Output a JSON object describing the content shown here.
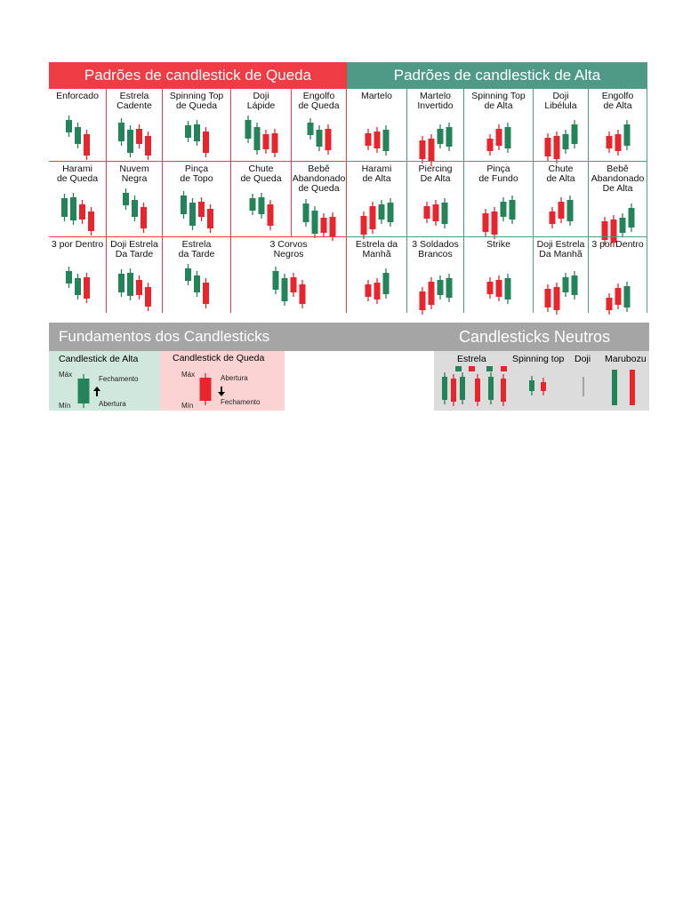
{
  "bearish": {
    "title": "Padrões de candlestick de Queda",
    "patterns": [
      "Enforcado",
      "Estrela\nCadente",
      "Spinning Top\nde Queda",
      "Doji\nLápide",
      "Engolfo\nde Queda",
      "Harami\nde Queda",
      "Nuvem\nNegra",
      "Pinça\nde Topo",
      "Chute\nde Queda",
      "Bebê\nAbandonado\nde Queda",
      "3 por Dentro",
      "Doji Estrela\nDa Tarde",
      "Estrela\nda Tarde",
      "3 Corvos\nNegros"
    ]
  },
  "bullish": {
    "title": "Padrões de candlestick de Alta",
    "patterns": [
      "Martelo",
      "Martelo\nInvertido",
      "Spinning Top\nde Alta",
      "Doji\nLibélula",
      "Engolfo\nde Alta",
      "Harami\nde Alta",
      "Piercing\nDe Alta",
      "Pinça\nde Fundo",
      "Chute\nde Alta",
      "Bebê\nAbandonado\nDe Alta",
      "Estrela da\nManhã",
      "3 Soldados\nBrancos",
      "Strike",
      "Doji Estrela\nDa Manhã",
      "3 por Dentro"
    ]
  },
  "basics": {
    "title": "Fundamentos dos Candlesticks",
    "bull": {
      "title": "Candlestick de Alta",
      "max": "Máx",
      "min": "Mín",
      "close": "Fechamento",
      "open": "Abertura"
    },
    "bear": {
      "title": "Candlestick de Queda",
      "max": "Máx",
      "min": "Mín",
      "open": "Abertura",
      "close": "Fechamento"
    }
  },
  "neutral": {
    "title": "Candlesticks Neutros",
    "labels": [
      "Estrela",
      "Spinning top",
      "Doji",
      "Marubozu"
    ]
  }
}
